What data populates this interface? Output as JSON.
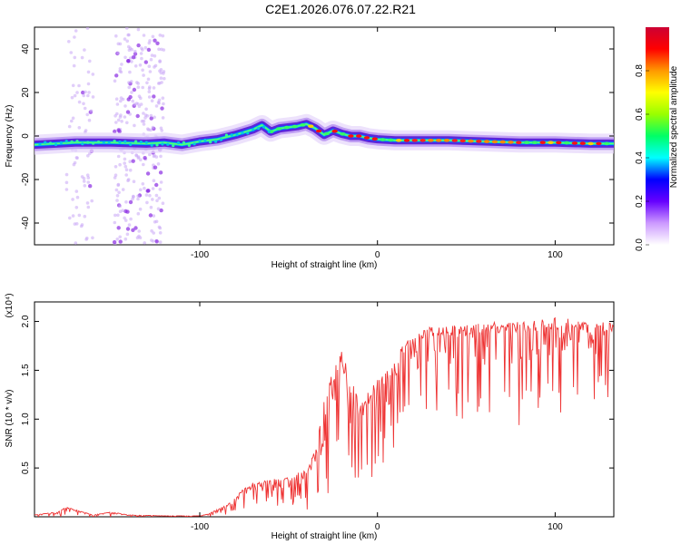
{
  "title": "C2E1.2026.076.07.22.R21",
  "chart_data": [
    {
      "type": "heatmap",
      "title": "C2E1.2026.076.07.22.R21",
      "xlabel": "Height of straight line (km)",
      "ylabel": "Frequency (Hz)",
      "xlim": [
        -193,
        133
      ],
      "ylim": [
        -50,
        50
      ],
      "x_ticks": [
        "-100",
        "0",
        "100"
      ],
      "y_ticks": [
        "-40",
        "-20",
        "0",
        "20",
        "40"
      ],
      "colorbar": {
        "label": "Normalized spectral amplitude",
        "range": [
          0.0,
          1.0
        ],
        "ticks": [
          "0.0",
          "0.2",
          "0.4",
          "0.6",
          "0.8"
        ],
        "colors": [
          "#ffffff",
          "#cc99ff",
          "#6600ff",
          "#0000ff",
          "#00ffff",
          "#00ff66",
          "#99ff00",
          "#ffff00",
          "#ff9900",
          "#ff0000",
          "#cc0033"
        ]
      },
      "ridge": {
        "x": [
          -193,
          -170,
          -150,
          -130,
          -120,
          -110,
          -100,
          -90,
          -80,
          -70,
          -65,
          -60,
          -55,
          -50,
          -45,
          -40,
          -35,
          -30,
          -25,
          -20,
          -15,
          -10,
          -5,
          0,
          10,
          20,
          40,
          60,
          80,
          100,
          120,
          133
        ],
        "frequency": [
          -4,
          -3,
          -3,
          -3.5,
          -3,
          -4,
          -2.5,
          -1.5,
          0.5,
          3,
          5,
          2,
          3.5,
          4,
          4.5,
          5.5,
          3.5,
          0.5,
          2.5,
          1,
          0,
          0,
          -1,
          -1.5,
          -2,
          -2,
          -2,
          -2.5,
          -3,
          -3,
          -3.5,
          -3.5
        ]
      },
      "bands": [
        {
          "x_range": [
            -175,
            -160
          ],
          "intensity": 0.15
        },
        {
          "x_range": [
            -148,
            -120
          ],
          "intensity": 0.3
        }
      ]
    },
    {
      "type": "line",
      "title": "",
      "xlabel": "Height of straight line (km)",
      "ylabel": "SNR (10 * v/v)",
      "y_scale_label": "(x10⁴)",
      "xlim": [
        -193,
        133
      ],
      "ylim": [
        0,
        2.2
      ],
      "x_ticks": [
        "-100",
        "0",
        "100"
      ],
      "y_ticks": [
        "0.5",
        "1.0",
        "1.5",
        "2.0"
      ],
      "series": [
        {
          "name": "SNR",
          "color": "#ee3333",
          "x": [
            -193,
            -180,
            -175,
            -160,
            -150,
            -140,
            -120,
            -100,
            -95,
            -90,
            -85,
            -80,
            -75,
            -70,
            -60,
            -50,
            -45,
            -40,
            -35,
            -30,
            -25,
            -20,
            -15,
            -10,
            -5,
            0,
            5,
            10,
            15,
            20,
            25,
            30,
            40,
            50,
            60,
            70,
            80,
            90,
            100,
            110,
            120,
            133
          ],
          "values": [
            0.02,
            0.05,
            0.1,
            0.02,
            0.05,
            0.02,
            0.01,
            0.01,
            0.03,
            0.08,
            0.12,
            0.2,
            0.3,
            0.35,
            0.4,
            0.4,
            0.45,
            0.5,
            0.7,
            1.2,
            1.5,
            1.7,
            1.4,
            1.2,
            1.3,
            1.4,
            1.5,
            1.6,
            1.8,
            1.85,
            1.9,
            1.95,
            1.95,
            1.97,
            1.98,
            2.0,
            2.0,
            2.02,
            2.05,
            2.02,
            1.98,
            2.0
          ],
          "floor": [
            0.0,
            0.0,
            0.0,
            0.0,
            0.0,
            0.0,
            0.0,
            0.0,
            0.0,
            0.0,
            0.02,
            0.05,
            0.08,
            0.1,
            0.1,
            0.1,
            0.1,
            0.05,
            0.05,
            0.1,
            0.3,
            0.4,
            0.3,
            0.2,
            0.35,
            0.5,
            0.55,
            0.65,
            0.8,
            1.0,
            1.1,
            1.1,
            1.0,
            0.95,
            0.9,
            0.9,
            0.9,
            0.95,
            1.0,
            1.05,
            1.1,
            1.15
          ]
        }
      ]
    }
  ]
}
